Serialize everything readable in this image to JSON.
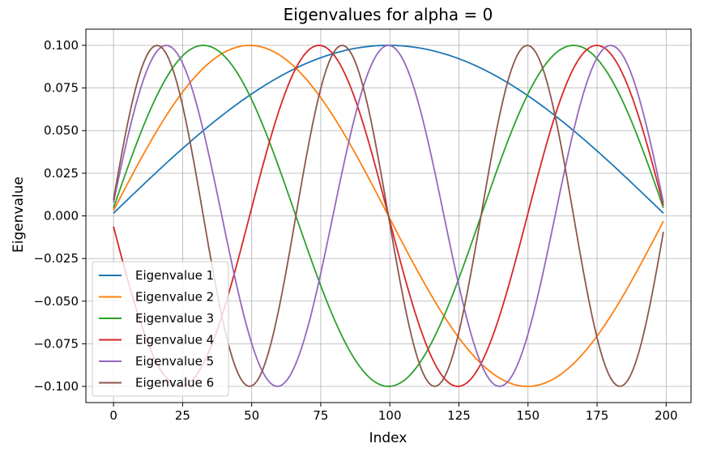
{
  "chart_data": {
    "type": "line",
    "title": "Eigenvalues for alpha = 0",
    "xlabel": "Index",
    "ylabel": "Eigenvalue",
    "xlim": [
      -10,
      209
    ],
    "ylim": [
      -0.1095,
      0.1095
    ],
    "xticks": [
      0,
      25,
      50,
      75,
      100,
      125,
      150,
      175,
      200
    ],
    "xtick_labels": [
      "0",
      "25",
      "50",
      "75",
      "100",
      "125",
      "150",
      "175",
      "200"
    ],
    "yticks": [
      0.1,
      0.075,
      0.05,
      0.025,
      0.0,
      -0.025,
      -0.05,
      -0.075,
      -0.1
    ],
    "ytick_labels": [
      "0.100",
      "0.075",
      "0.050",
      "0.025",
      "0.000",
      "−0.025",
      "−0.050",
      "−0.075",
      "−0.100"
    ],
    "grid": true,
    "legend_position": "lower-left",
    "n_points": 200,
    "amplitude": 0.1,
    "series": [
      {
        "name": "Eigenvalue 1",
        "mode": 1,
        "sign": 1,
        "color": "#1f77b4"
      },
      {
        "name": "Eigenvalue 2",
        "mode": 2,
        "sign": 1,
        "color": "#ff7f0e"
      },
      {
        "name": "Eigenvalue 3",
        "mode": 3,
        "sign": 1,
        "color": "#2ca02c"
      },
      {
        "name": "Eigenvalue 4",
        "mode": 4,
        "sign": -1,
        "color": "#d62728"
      },
      {
        "name": "Eigenvalue 5",
        "mode": 5,
        "sign": 1,
        "color": "#9467bd"
      },
      {
        "name": "Eigenvalue 6",
        "mode": 6,
        "sign": 1,
        "color": "#8c564b"
      }
    ]
  }
}
